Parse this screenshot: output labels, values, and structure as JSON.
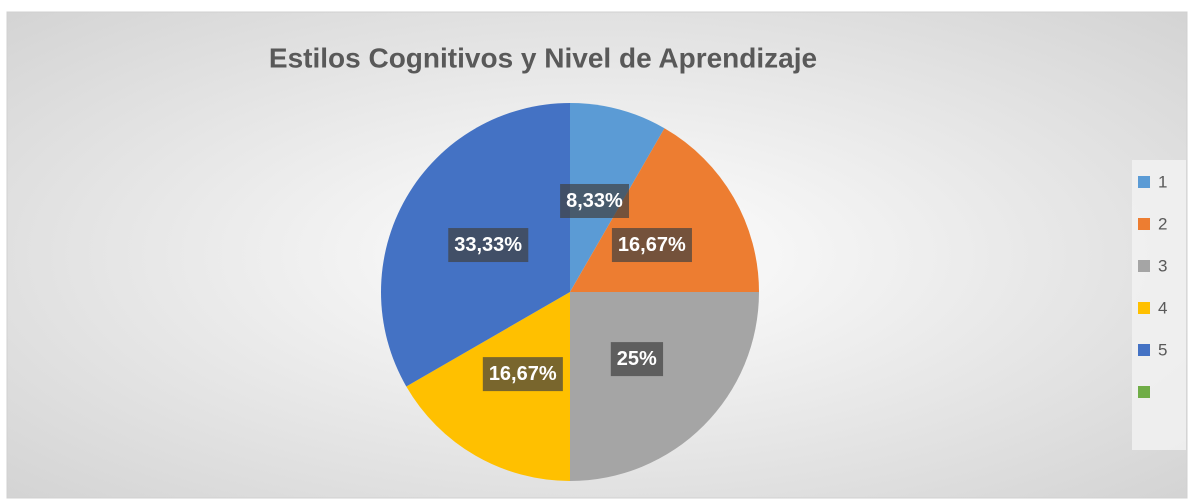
{
  "chart_data": {
    "type": "pie",
    "title": "Estilos Cognitivos y Nivel de Aprendizaje",
    "categories": [
      "1",
      "2",
      "3",
      "4",
      "5",
      null
    ],
    "values": [
      8.33,
      16.67,
      25,
      16.67,
      33.33,
      0
    ],
    "value_labels": [
      "8,33%",
      "16,67%",
      "25%",
      "16,67%",
      "33,33%",
      null
    ],
    "colors": [
      "#5b9bd5",
      "#ed7d31",
      "#a5a5a5",
      "#ffc000",
      "#4472c4",
      "#70ad47"
    ],
    "legend": "right"
  }
}
